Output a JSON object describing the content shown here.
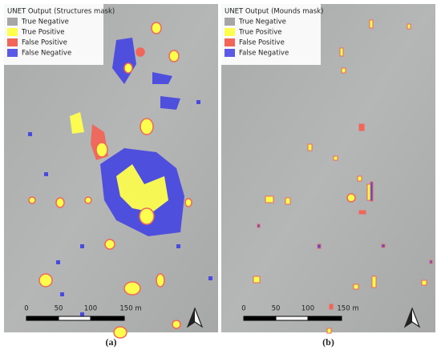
{
  "panels": [
    {
      "legend": {
        "title": "UNET Output (Structures mask)",
        "items": [
          {
            "label": "True Negative",
            "color": "#a6a6a6"
          },
          {
            "label": "True Positive",
            "color": "#ffff4d"
          },
          {
            "label": "False Positive",
            "color": "#f2665a"
          },
          {
            "label": "False Negative",
            "color": "#5a5ae6"
          }
        ]
      },
      "scale": [
        "0",
        "50",
        "100",
        "150 m"
      ],
      "caption": "(a)"
    },
    {
      "legend": {
        "title": "UNET Output (Mounds mask)",
        "items": [
          {
            "label": "True Negative",
            "color": "#a6a6a6"
          },
          {
            "label": "True Positive",
            "color": "#ffff4d"
          },
          {
            "label": "False Positive",
            "color": "#f2665a"
          },
          {
            "label": "False Negative",
            "color": "#5a5ae6"
          }
        ]
      },
      "scale": [
        "0",
        "50",
        "100",
        "150 m"
      ],
      "caption": "(b)"
    }
  ]
}
